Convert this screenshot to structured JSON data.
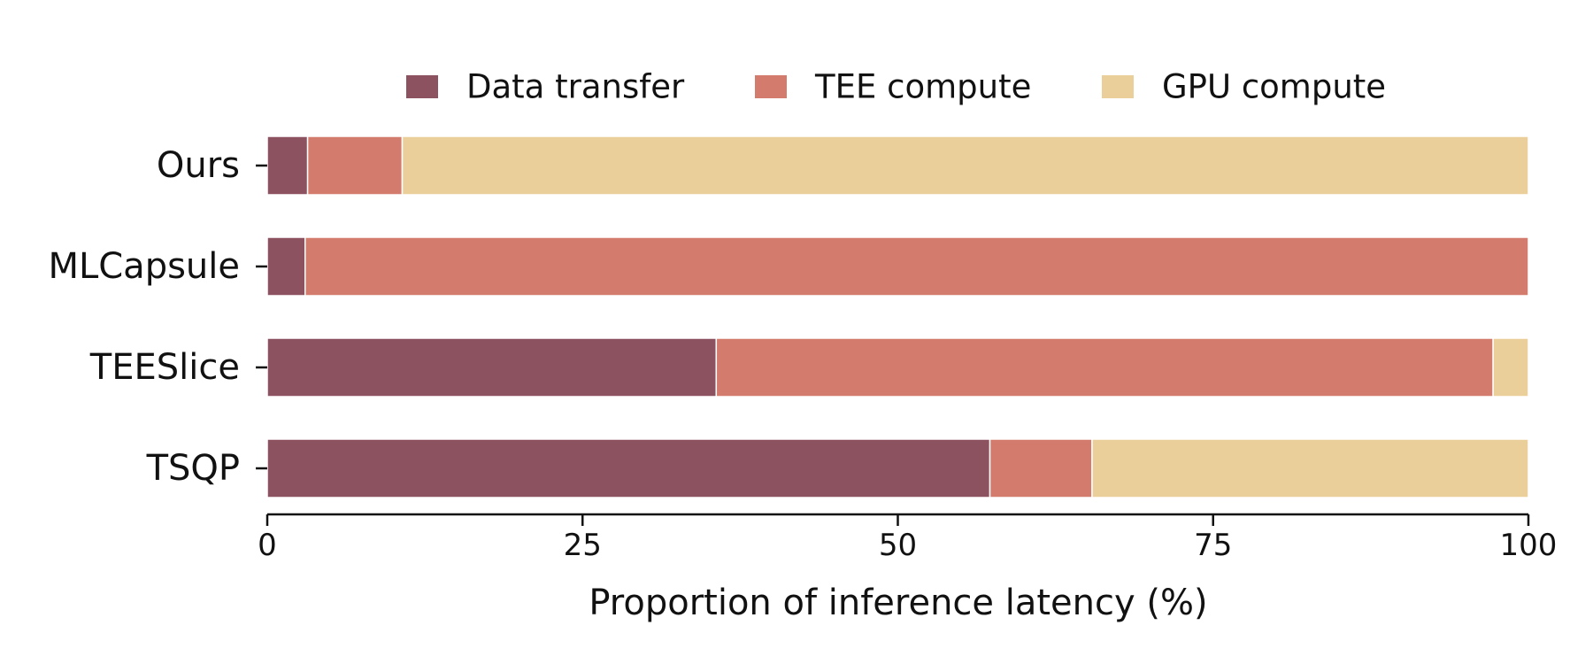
{
  "chart_data": {
    "type": "bar",
    "orientation": "horizontal",
    "stacked": true,
    "title": "",
    "xlabel": "Proportion of inference latency (%)",
    "ylabel": "",
    "xlim": [
      0,
      100
    ],
    "xticks": [
      0,
      25,
      50,
      75,
      100
    ],
    "grid": false,
    "legend_position": "top",
    "categories": [
      "Ours",
      "MLCapsule",
      "TEESlice",
      "TSQP"
    ],
    "series": [
      {
        "name": "Data transfer",
        "color": "#8d5260",
        "values": [
          3.2,
          3.0,
          35.6,
          57.3
        ]
      },
      {
        "name": "TEE compute",
        "color": "#d37b6d",
        "values": [
          7.5,
          97.0,
          61.6,
          8.1
        ]
      },
      {
        "name": "GPU compute",
        "color": "#ebcf9b",
        "values": [
          89.3,
          0.0,
          2.8,
          34.6
        ]
      }
    ]
  }
}
